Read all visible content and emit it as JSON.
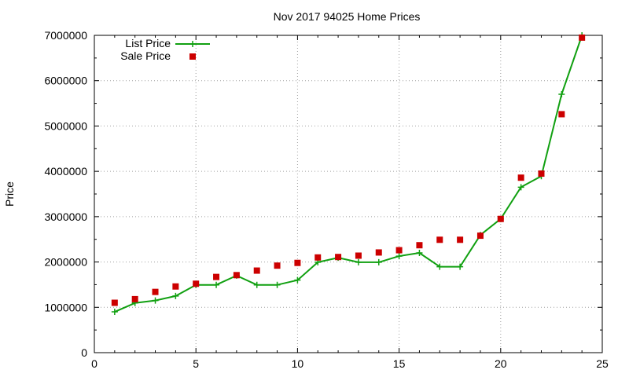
{
  "chart_data": {
    "type": "line",
    "title": "Nov 2017 94025 Home Prices",
    "xlabel": "",
    "ylabel": "Price",
    "xlim": [
      0,
      25
    ],
    "ylim": [
      0,
      7000000
    ],
    "xticks": [
      "0",
      "5",
      "10",
      "15",
      "20",
      "25"
    ],
    "yticks": [
      "0",
      "1000000",
      "2000000",
      "3000000",
      "4000000",
      "5000000",
      "6000000",
      "7000000"
    ],
    "grid": true,
    "legend_position": "top-left",
    "series": [
      {
        "name": "List Price",
        "style": "line-with-plus-markers",
        "color": "#11a011",
        "x": [
          1,
          2,
          3,
          4,
          5,
          6,
          7,
          8,
          9,
          10,
          11,
          12,
          13,
          14,
          15,
          16,
          17,
          18,
          19,
          20,
          21,
          22,
          23,
          24
        ],
        "values": [
          900000,
          1095000,
          1150000,
          1250000,
          1495000,
          1495000,
          1700000,
          1495000,
          1495000,
          1600000,
          1995000,
          2095000,
          1995000,
          1995000,
          2130000,
          2200000,
          1895000,
          1895000,
          2595000,
          2950000,
          3650000,
          3895000,
          5700000,
          7000000
        ]
      },
      {
        "name": "Sale Price",
        "style": "square-markers",
        "color": "#cc0000",
        "x": [
          1,
          2,
          3,
          4,
          5,
          6,
          7,
          8,
          9,
          10,
          11,
          12,
          13,
          14,
          15,
          16,
          17,
          18,
          19,
          20,
          21,
          22,
          23,
          24
        ],
        "values": [
          1100000,
          1180000,
          1340000,
          1460000,
          1520000,
          1670000,
          1710000,
          1810000,
          1920000,
          1980000,
          2100000,
          2110000,
          2140000,
          2210000,
          2260000,
          2370000,
          2490000,
          2490000,
          2580000,
          2950000,
          3860000,
          3950000,
          5260000,
          6950000
        ]
      }
    ]
  }
}
